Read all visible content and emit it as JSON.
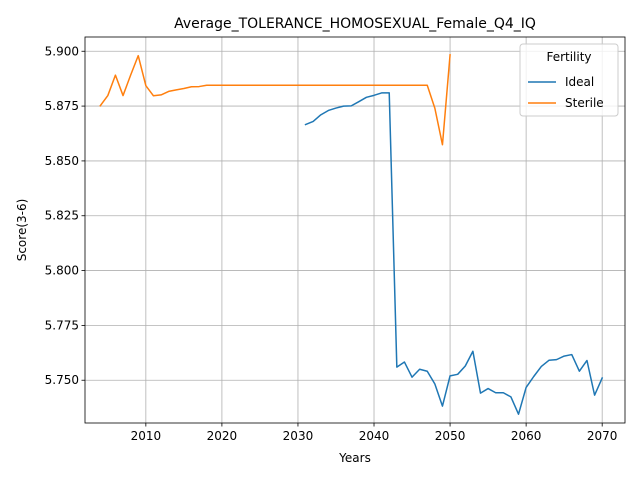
{
  "chart_data": {
    "type": "line",
    "title": "Average_TOLERANCE_HOMOSEXUAL_Female_Q4_IQ",
    "xlabel": "Years",
    "ylabel": "Score(3-6)",
    "xlim": [
      2002,
      2073
    ],
    "ylim": [
      5.7305,
      5.9065
    ],
    "x_ticks": [
      2010,
      2020,
      2030,
      2040,
      2050,
      2060,
      2070
    ],
    "y_ticks": [
      5.75,
      5.775,
      5.8,
      5.825,
      5.85,
      5.875,
      5.9
    ],
    "y_tick_labels": [
      "5.750",
      "5.775",
      "5.800",
      "5.825",
      "5.850",
      "5.875",
      "5.900"
    ],
    "grid": true,
    "legend": {
      "title": "Fertility",
      "position": "top-right"
    },
    "series": [
      {
        "name": "Ideal",
        "color": "#1f77b4",
        "points": [
          [
            2031,
            5.8666
          ],
          [
            2032,
            5.868
          ],
          [
            2033,
            5.871
          ],
          [
            2034,
            5.873
          ],
          [
            2035,
            5.8741
          ],
          [
            2036,
            5.875
          ],
          [
            2037,
            5.8751
          ],
          [
            2038,
            5.877
          ],
          [
            2039,
            5.879
          ],
          [
            2040,
            5.8799
          ],
          [
            2041,
            5.881
          ],
          [
            2042,
            5.881
          ],
          [
            2043,
            5.756
          ],
          [
            2044,
            5.7583
          ],
          [
            2045,
            5.7514
          ],
          [
            2046,
            5.755
          ],
          [
            2047,
            5.7541
          ],
          [
            2048,
            5.7483
          ],
          [
            2049,
            5.7382
          ],
          [
            2050,
            5.752
          ],
          [
            2051,
            5.7527
          ],
          [
            2052,
            5.7565
          ],
          [
            2053,
            5.7632
          ],
          [
            2054,
            5.7441
          ],
          [
            2055,
            5.7462
          ],
          [
            2056,
            5.7443
          ],
          [
            2057,
            5.7443
          ],
          [
            2058,
            5.7424
          ],
          [
            2059,
            5.7345
          ],
          [
            2060,
            5.7467
          ],
          [
            2061,
            5.7517
          ],
          [
            2062,
            5.7563
          ],
          [
            2063,
            5.7591
          ],
          [
            2064,
            5.7594
          ],
          [
            2065,
            5.761
          ],
          [
            2066,
            5.7617
          ],
          [
            2067,
            5.7541
          ],
          [
            2068,
            5.759
          ],
          [
            2069,
            5.7432
          ],
          [
            2070,
            5.751
          ]
        ]
      },
      {
        "name": "Sterile",
        "color": "#ff7f0e",
        "points": [
          [
            2004,
            5.8751
          ],
          [
            2005,
            5.8798
          ],
          [
            2006,
            5.8891
          ],
          [
            2007,
            5.8798
          ],
          [
            2008,
            5.8891
          ],
          [
            2009,
            5.898
          ],
          [
            2010,
            5.8843
          ],
          [
            2011,
            5.8797
          ],
          [
            2012,
            5.8801
          ],
          [
            2013,
            5.8817
          ],
          [
            2014,
            5.8824
          ],
          [
            2015,
            5.883
          ],
          [
            2016,
            5.8838
          ],
          [
            2017,
            5.8839
          ],
          [
            2018,
            5.8845
          ],
          [
            2019,
            5.8845
          ],
          [
            2020,
            5.8845
          ],
          [
            2025,
            5.8845
          ],
          [
            2030,
            5.8845
          ],
          [
            2035,
            5.8845
          ],
          [
            2040,
            5.8845
          ],
          [
            2045,
            5.8845
          ],
          [
            2047,
            5.8845
          ],
          [
            2048,
            5.874
          ],
          [
            2049,
            5.8574
          ],
          [
            2050,
            5.8984
          ]
        ]
      }
    ]
  }
}
